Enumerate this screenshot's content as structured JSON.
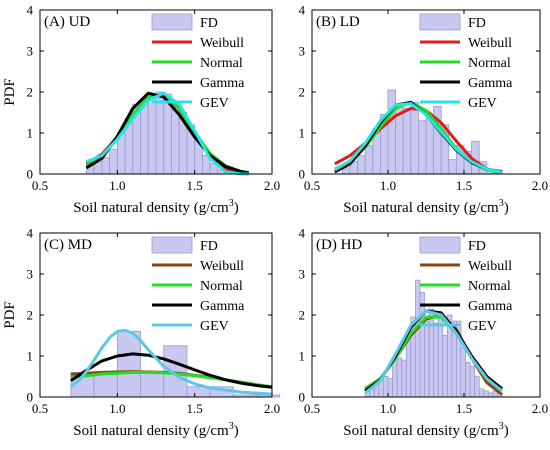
{
  "chart_data": [
    {
      "type": "bar",
      "title": "(A) UD",
      "xlabel": "Soil natural density (g/cm",
      "xlabel_sup": "3",
      "xlabel_close": ")",
      "ylabel": "PDF",
      "xlim": [
        0.5,
        2.0
      ],
      "ylim": [
        0,
        4
      ],
      "xticks": [
        "0.5",
        "1.0",
        "1.5",
        "2.0"
      ],
      "yticks": [
        "0",
        "1",
        "2",
        "3",
        "4"
      ],
      "legend_position": "top-right",
      "histogram": {
        "name": "FD",
        "bin_width": 0.05,
        "bin_starts": [
          0.8,
          0.85,
          0.9,
          0.95,
          1.0,
          1.05,
          1.1,
          1.15,
          1.2,
          1.25,
          1.3,
          1.35,
          1.4,
          1.45,
          1.5,
          1.55,
          1.6,
          1.65,
          1.7,
          1.75
        ],
        "values": [
          0.3,
          0.3,
          0.4,
          0.6,
          1.0,
          1.35,
          1.7,
          1.75,
          1.85,
          2.0,
          1.95,
          1.75,
          1.5,
          1.2,
          0.8,
          0.45,
          0.25,
          0.1,
          0.15,
          0.05
        ]
      },
      "fits": [
        {
          "name": "Weibull",
          "color": "#e41a1c",
          "x": [
            0.8,
            0.9,
            1.0,
            1.1,
            1.2,
            1.3,
            1.4,
            1.5,
            1.6,
            1.7,
            1.8,
            1.85
          ],
          "values": [
            0.25,
            0.48,
            0.9,
            1.45,
            1.85,
            1.95,
            1.6,
            1.0,
            0.42,
            0.12,
            0.02,
            0.0
          ]
        },
        {
          "name": "Normal",
          "color": "#22dd22",
          "x": [
            0.8,
            0.9,
            1.0,
            1.1,
            1.2,
            1.3,
            1.4,
            1.5,
            1.6,
            1.7,
            1.8,
            1.85
          ],
          "values": [
            0.2,
            0.4,
            0.88,
            1.45,
            1.88,
            1.95,
            1.6,
            1.02,
            0.5,
            0.2,
            0.06,
            0.03
          ]
        },
        {
          "name": "Gamma",
          "color": "#000000",
          "x": [
            0.8,
            0.9,
            1.0,
            1.1,
            1.2,
            1.3,
            1.4,
            1.5,
            1.6,
            1.7,
            1.8,
            1.85
          ],
          "values": [
            0.15,
            0.38,
            0.92,
            1.6,
            1.97,
            1.88,
            1.45,
            0.9,
            0.45,
            0.18,
            0.06,
            0.03
          ]
        },
        {
          "name": "GEV",
          "color": "#22e5e5",
          "x": [
            0.8,
            0.9,
            1.0,
            1.1,
            1.2,
            1.3,
            1.4,
            1.5,
            1.6,
            1.7,
            1.8,
            1.85
          ],
          "values": [
            0.3,
            0.45,
            0.85,
            1.35,
            1.8,
            1.97,
            1.7,
            1.05,
            0.38,
            0.05,
            0.0,
            0.0
          ]
        }
      ]
    },
    {
      "type": "bar",
      "title": "(B) LD",
      "xlabel": "Soil natural density (g/cm",
      "xlabel_sup": "3",
      "xlabel_close": ")",
      "ylabel": "",
      "xlim": [
        0.5,
        2.0
      ],
      "ylim": [
        0,
        4
      ],
      "xticks": [
        "0.5",
        "1.0",
        "1.5",
        "2.0"
      ],
      "yticks": [
        "0",
        "1",
        "2",
        "3",
        "4"
      ],
      "legend_position": "top-right",
      "histogram": {
        "name": "FD",
        "bin_width": 0.05,
        "bin_starts": [
          0.7,
          0.75,
          0.8,
          0.85,
          0.9,
          0.95,
          1.0,
          1.05,
          1.1,
          1.15,
          1.2,
          1.25,
          1.3,
          1.35,
          1.4,
          1.45,
          1.5,
          1.55,
          1.6,
          1.65,
          1.7
        ],
        "values": [
          0.15,
          0.3,
          0.45,
          0.7,
          1.1,
          1.45,
          2.05,
          1.7,
          1.6,
          1.75,
          1.3,
          1.35,
          1.65,
          1.2,
          0.35,
          0.7,
          0.55,
          0.8,
          0.3,
          0.1,
          0.1
        ]
      },
      "fits": [
        {
          "name": "Weibull",
          "color": "#e41a1c",
          "x": [
            0.65,
            0.75,
            0.85,
            0.95,
            1.05,
            1.15,
            1.25,
            1.35,
            1.45,
            1.55,
            1.65,
            1.75
          ],
          "values": [
            0.25,
            0.45,
            0.75,
            1.1,
            1.42,
            1.6,
            1.55,
            1.25,
            0.8,
            0.38,
            0.12,
            0.02
          ]
        },
        {
          "name": "Normal",
          "color": "#22dd22",
          "x": [
            0.65,
            0.75,
            0.85,
            0.95,
            1.05,
            1.15,
            1.25,
            1.35,
            1.45,
            1.55,
            1.65,
            1.75
          ],
          "values": [
            0.12,
            0.3,
            0.65,
            1.15,
            1.6,
            1.75,
            1.55,
            1.1,
            0.62,
            0.28,
            0.1,
            0.03
          ]
        },
        {
          "name": "Gamma",
          "color": "#000000",
          "x": [
            0.65,
            0.75,
            0.85,
            0.95,
            1.05,
            1.15,
            1.25,
            1.35,
            1.45,
            1.55,
            1.65,
            1.75
          ],
          "values": [
            0.05,
            0.25,
            0.68,
            1.25,
            1.68,
            1.75,
            1.45,
            1.0,
            0.58,
            0.28,
            0.12,
            0.05
          ]
        },
        {
          "name": "GEV",
          "color": "#22e5e5",
          "x": [
            0.65,
            0.75,
            0.85,
            0.95,
            1.05,
            1.15,
            1.25,
            1.35,
            1.45,
            1.55,
            1.65,
            1.75
          ],
          "values": [
            0.1,
            0.32,
            0.75,
            1.3,
            1.68,
            1.72,
            1.45,
            1.02,
            0.6,
            0.3,
            0.12,
            0.04
          ]
        }
      ]
    },
    {
      "type": "bar",
      "title": "(C) MD",
      "xlabel": "Soil natural density (g/cm",
      "xlabel_sup": "3",
      "xlabel_close": ")",
      "ylabel": "PDF",
      "xlim": [
        0.5,
        2.0
      ],
      "ylim": [
        0,
        4
      ],
      "xticks": [
        "0.5",
        "1.0",
        "1.5",
        "2.0"
      ],
      "yticks": [
        "0",
        "1",
        "2",
        "3",
        "4"
      ],
      "legend_position": "top-right",
      "histogram": {
        "name": "FD",
        "bin_width": 0.15,
        "bin_starts": [
          0.7,
          0.85,
          1.0,
          1.15,
          1.3,
          1.45,
          1.6,
          1.75,
          1.9
        ],
        "values": [
          0.6,
          0.6,
          1.6,
          0.6,
          1.25,
          0.25,
          0.25,
          0.05,
          0.05
        ]
      },
      "fits": [
        {
          "name": "Weibull",
          "color": "#8b4513",
          "x": [
            0.7,
            0.8,
            0.9,
            1.0,
            1.1,
            1.2,
            1.3,
            1.4,
            1.5,
            1.6,
            1.7,
            1.8,
            1.9,
            2.0
          ],
          "values": [
            0.55,
            0.58,
            0.6,
            0.61,
            0.62,
            0.61,
            0.6,
            0.58,
            0.53,
            0.48,
            0.42,
            0.36,
            0.3,
            0.25
          ]
        },
        {
          "name": "Normal",
          "color": "#22dd22",
          "x": [
            0.7,
            0.8,
            0.9,
            1.0,
            1.1,
            1.2,
            1.3,
            1.4,
            1.5,
            1.6,
            1.7,
            1.8,
            1.9,
            2.0
          ],
          "values": [
            0.48,
            0.52,
            0.56,
            0.58,
            0.6,
            0.6,
            0.59,
            0.56,
            0.52,
            0.47,
            0.42,
            0.36,
            0.3,
            0.25
          ]
        },
        {
          "name": "Gamma",
          "color": "#000000",
          "x": [
            0.7,
            0.8,
            0.9,
            1.0,
            1.1,
            1.2,
            1.3,
            1.4,
            1.5,
            1.6,
            1.7,
            1.8,
            1.9,
            2.0
          ],
          "values": [
            0.4,
            0.65,
            0.88,
            1.0,
            1.05,
            1.02,
            0.93,
            0.8,
            0.66,
            0.53,
            0.42,
            0.34,
            0.28,
            0.24
          ]
        },
        {
          "name": "GEV",
          "color": "#5bc8e8",
          "x": [
            0.7,
            0.75,
            0.8,
            0.85,
            0.9,
            0.95,
            1.0,
            1.05,
            1.1,
            1.15,
            1.2,
            1.3,
            1.4,
            1.5,
            1.6,
            1.8,
            2.0
          ],
          "values": [
            0.25,
            0.4,
            0.62,
            0.9,
            1.2,
            1.45,
            1.6,
            1.63,
            1.55,
            1.38,
            1.15,
            0.75,
            0.48,
            0.32,
            0.22,
            0.12,
            0.07
          ]
        }
      ]
    },
    {
      "type": "bar",
      "title": "(D) HD",
      "xlabel": "Soil natural density (g/cm",
      "xlabel_sup": "3",
      "xlabel_close": ")",
      "ylabel": "",
      "xlim": [
        0.5,
        2.0
      ],
      "ylim": [
        0,
        4
      ],
      "xticks": [
        "0.5",
        "1.0",
        "1.5",
        "2.0"
      ],
      "yticks": [
        "0",
        "1",
        "2",
        "3",
        "4"
      ],
      "legend_position": "top-right",
      "histogram": {
        "name": "FD",
        "bin_width": 0.03,
        "bin_starts": [
          0.85,
          0.88,
          0.91,
          0.94,
          0.97,
          1.0,
          1.03,
          1.06,
          1.09,
          1.12,
          1.15,
          1.18,
          1.21,
          1.24,
          1.27,
          1.3,
          1.33,
          1.36,
          1.39,
          1.42,
          1.45,
          1.48,
          1.51,
          1.54,
          1.57,
          1.6,
          1.63,
          1.66,
          1.69,
          1.72
        ],
        "values": [
          0.15,
          0.2,
          0.3,
          0.4,
          0.5,
          0.45,
          0.95,
          0.95,
          0.9,
          1.5,
          1.95,
          2.85,
          2.55,
          1.85,
          2.15,
          1.8,
          2.0,
          1.5,
          2.0,
          1.85,
          1.85,
          1.2,
          0.85,
          0.75,
          0.5,
          0.2,
          0.15,
          0.1,
          0.15,
          0.1
        ]
      },
      "fits": [
        {
          "name": "Weibull",
          "color": "#8b4513",
          "x": [
            0.85,
            0.95,
            1.05,
            1.15,
            1.25,
            1.35,
            1.45,
            1.55,
            1.65,
            1.75
          ],
          "values": [
            0.2,
            0.45,
            0.95,
            1.5,
            1.9,
            2.0,
            1.65,
            0.95,
            0.35,
            0.06
          ]
        },
        {
          "name": "Normal",
          "color": "#22dd22",
          "x": [
            0.85,
            0.95,
            1.05,
            1.15,
            1.25,
            1.35,
            1.45,
            1.55,
            1.65,
            1.75
          ],
          "values": [
            0.18,
            0.45,
            0.95,
            1.55,
            1.95,
            1.95,
            1.55,
            0.95,
            0.45,
            0.15
          ]
        },
        {
          "name": "Gamma",
          "color": "#000000",
          "x": [
            0.85,
            0.95,
            1.05,
            1.15,
            1.25,
            1.35,
            1.45,
            1.55,
            1.65,
            1.75
          ],
          "values": [
            0.15,
            0.42,
            1.0,
            1.7,
            2.1,
            2.05,
            1.6,
            1.0,
            0.5,
            0.2
          ]
        },
        {
          "name": "GEV",
          "color": "#5bc8e8",
          "x": [
            0.85,
            0.95,
            1.05,
            1.15,
            1.25,
            1.35,
            1.45,
            1.55,
            1.65,
            1.75
          ],
          "values": [
            0.1,
            0.4,
            1.05,
            1.75,
            2.1,
            2.0,
            1.55,
            0.95,
            0.45,
            0.15
          ]
        }
      ]
    }
  ],
  "colors": {
    "histogram_fill": "#c8c8f0",
    "histogram_stroke": "#9a9ad0",
    "axis": "#000000"
  }
}
